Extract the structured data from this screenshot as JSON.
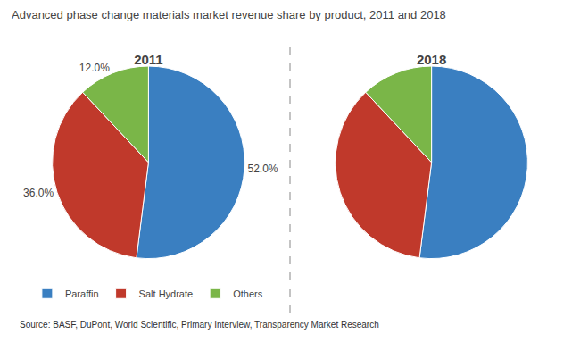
{
  "chart_data": [
    {
      "type": "pie",
      "title": "Advanced phase change materials market revenue share by product, 2011 and 2018",
      "subtitle": "2011",
      "categories": [
        "Paraffin",
        "Salt Hydrate",
        "Others"
      ],
      "values": [
        52.0,
        36.0,
        12.0
      ],
      "value_labels": [
        "52.0%",
        "36.0%",
        "12.0%"
      ],
      "colors": [
        "#3a7fc1",
        "#c0392b",
        "#7ab648"
      ],
      "data_labels": true,
      "legend": "bottom",
      "annotations": [
        "Source: BASF, DuPont, World Scientific, Primary Interview, Transparency Market Research"
      ]
    },
    {
      "type": "pie",
      "subtitle": "2018",
      "categories": [
        "Paraffin",
        "Salt Hydrate",
        "Others"
      ],
      "values": [
        52.0,
        36.0,
        12.0
      ],
      "colors": [
        "#3a7fc1",
        "#c0392b",
        "#7ab648"
      ],
      "data_labels": false,
      "legend": "bottom"
    }
  ]
}
